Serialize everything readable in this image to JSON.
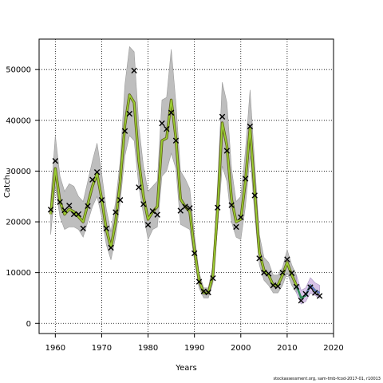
{
  "footer": "stockassessment.org, sam-tmb-fcod-2017-01, r10013",
  "chart_data": {
    "type": "line",
    "title": "",
    "xlabel": "Years",
    "ylabel": "Catch",
    "xlim": [
      1956.5,
      2020
    ],
    "ylim": [
      -2000,
      56000
    ],
    "xticks": [
      1960,
      1970,
      1980,
      1990,
      2000,
      2010,
      2020
    ],
    "yticks": [
      0,
      10000,
      20000,
      30000,
      40000,
      50000
    ],
    "grid": true,
    "colors": {
      "ci_band": "#bebebe",
      "fit_outline": "#5a5a14",
      "fit_line": "#9acd32",
      "recent_band": "#d8c3e8",
      "recent_line_a": "#2e8b57",
      "recent_line_b": "#7b68ee",
      "observed": "#000000"
    },
    "fit": {
      "x": [
        1959,
        1960,
        1961,
        1962,
        1963,
        1964,
        1965,
        1966,
        1967,
        1968,
        1969,
        1970,
        1971,
        1972,
        1973,
        1974,
        1975,
        1976,
        1977,
        1978,
        1979,
        1980,
        1981,
        1982,
        1983,
        1984,
        1985,
        1986,
        1987,
        1988,
        1989,
        1990,
        1991,
        1992,
        1993,
        1994,
        1995,
        1996,
        1997,
        1998,
        1999,
        2000,
        2001,
        2002,
        2003,
        2004,
        2005,
        2006,
        2007,
        2008,
        2009,
        2010,
        2011,
        2012,
        2013,
        2014,
        2015,
        2016,
        2017
      ],
      "mid": [
        21500,
        30500,
        24000,
        21500,
        22500,
        22000,
        21000,
        20000,
        23500,
        27000,
        29500,
        24500,
        18500,
        15000,
        20000,
        28000,
        39000,
        45000,
        43500,
        32000,
        25000,
        20500,
        22000,
        23000,
        36000,
        36500,
        44000,
        36500,
        24500,
        23000,
        22000,
        14500,
        8500,
        6000,
        6000,
        9500,
        22500,
        39500,
        35000,
        24500,
        20000,
        20500,
        28000,
        38500,
        26000,
        14000,
        10500,
        9500,
        7500,
        7500,
        9500,
        12000,
        9500,
        7500,
        5000,
        5500,
        7500,
        6500,
        6000
      ],
      "lo": [
        17500,
        27000,
        21000,
        18500,
        19000,
        19000,
        18500,
        17000,
        20000,
        23000,
        25000,
        21000,
        15500,
        12500,
        17000,
        24000,
        33000,
        37000,
        36000,
        27000,
        21500,
        16500,
        18500,
        19000,
        29000,
        30000,
        33500,
        30500,
        19500,
        19000,
        18500,
        12500,
        7000,
        5000,
        5000,
        8000,
        19000,
        31000,
        28000,
        20000,
        17000,
        16500,
        23000,
        33000,
        21500,
        11500,
        8500,
        7500,
        6000,
        6000,
        7500,
        10000,
        7500,
        6000,
        3800,
        4300,
        6000,
        5500,
        5000
      ],
      "hi": [
        24500,
        37000,
        29000,
        26000,
        27500,
        27000,
        25000,
        24000,
        28000,
        32000,
        35500,
        29500,
        22500,
        18000,
        24000,
        32000,
        47000,
        54500,
        53500,
        39000,
        31000,
        26000,
        27000,
        28000,
        44000,
        44500,
        54000,
        43500,
        30000,
        28500,
        26500,
        17500,
        10000,
        7000,
        7000,
        11500,
        27500,
        47500,
        43500,
        30500,
        24000,
        25000,
        34000,
        46000,
        31500,
        17500,
        13000,
        12000,
        9500,
        9500,
        11000,
        14500,
        11500,
        9500,
        6500,
        7000,
        9000,
        8000,
        7500
      ],
      "recent_start": 2012
    },
    "observed": {
      "x": [
        1959,
        1960,
        1961,
        1962,
        1963,
        1964,
        1965,
        1966,
        1967,
        1968,
        1969,
        1970,
        1971,
        1972,
        1973,
        1974,
        1975,
        1976,
        1977,
        1978,
        1979,
        1980,
        1981,
        1982,
        1983,
        1984,
        1985,
        1986,
        1987,
        1988,
        1989,
        1990,
        1991,
        1992,
        1993,
        1994,
        1995,
        1996,
        1997,
        1998,
        1999,
        2000,
        2001,
        2002,
        2003,
        2004,
        2005,
        2006,
        2007,
        2008,
        2009,
        2010,
        2011,
        2012,
        2013,
        2014,
        2015,
        2016,
        2017
      ],
      "y": [
        22400,
        32000,
        23900,
        22300,
        23200,
        21500,
        21500,
        18700,
        23100,
        28300,
        29800,
        24300,
        18700,
        14900,
        21900,
        24300,
        37900,
        41300,
        49800,
        26800,
        23500,
        19400,
        22100,
        21400,
        39400,
        38300,
        41500,
        36000,
        22200,
        23000,
        22700,
        13800,
        8200,
        6300,
        6100,
        8900,
        22800,
        40700,
        34000,
        23300,
        19000,
        20900,
        28500,
        38800,
        25200,
        12800,
        10000,
        9800,
        7500,
        7300,
        10000,
        12600,
        9900,
        7200,
        4500,
        5800,
        7100,
        6000,
        5400
      ]
    }
  }
}
